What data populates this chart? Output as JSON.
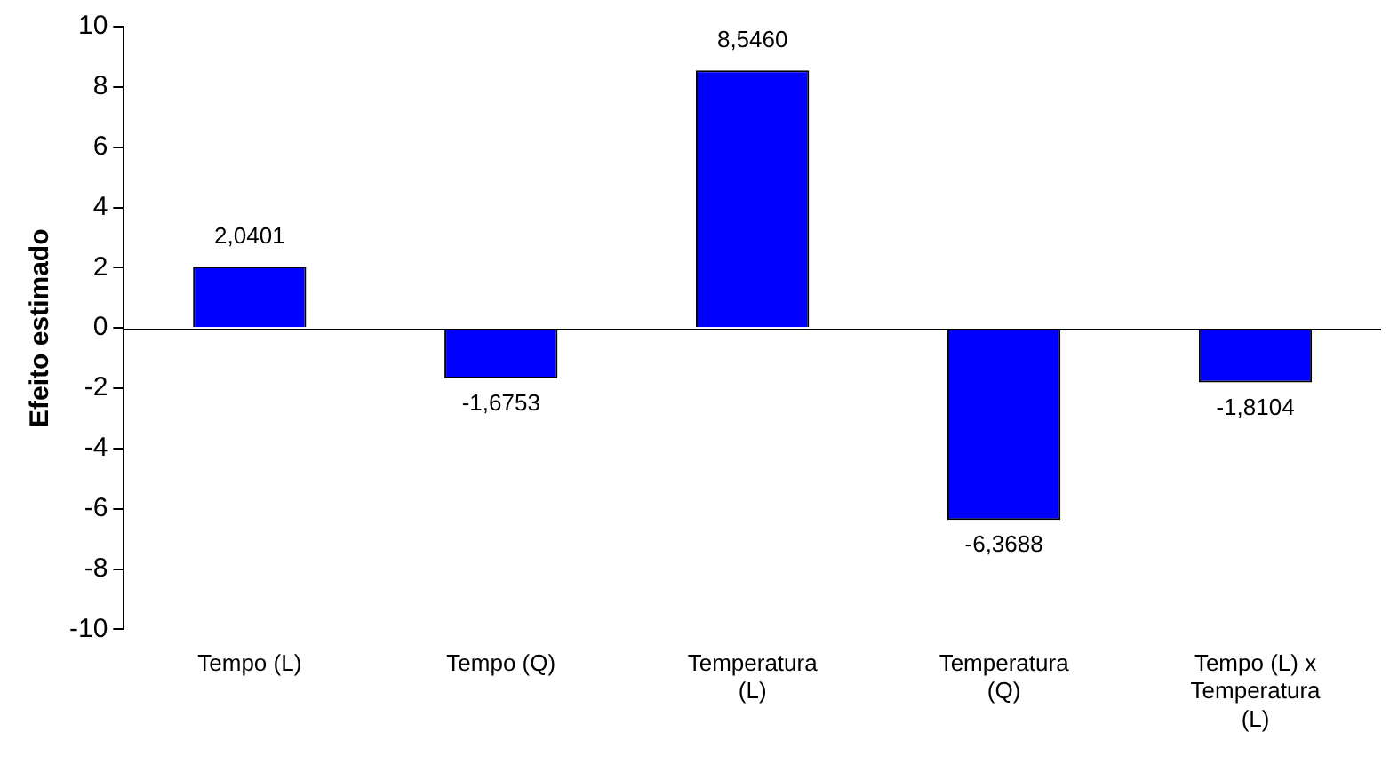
{
  "chart_data": {
    "type": "bar",
    "ylabel": "Efeito estimado",
    "categories": [
      "Tempo (L)",
      "Tempo (Q)",
      "Temperatura (L)",
      "Temperatura (Q)",
      "Tempo (L) x Temperatura (L)"
    ],
    "values": [
      2.0401,
      -1.6753,
      8.546,
      -6.3688,
      -1.8104
    ],
    "value_labels": [
      "2,0401",
      "-1,6753",
      "8,5460",
      "-6,3688",
      "-1,8104"
    ],
    "color": "#0000ff",
    "ylim": [
      -10,
      10
    ],
    "yticks": [
      -10,
      -8,
      -6,
      -4,
      -2,
      0,
      2,
      4,
      6,
      8,
      10
    ],
    "ref_lines": [
      {
        "axis": "y",
        "value": 0,
        "color": "#000000"
      }
    ],
    "grid": false,
    "legend": false
  }
}
